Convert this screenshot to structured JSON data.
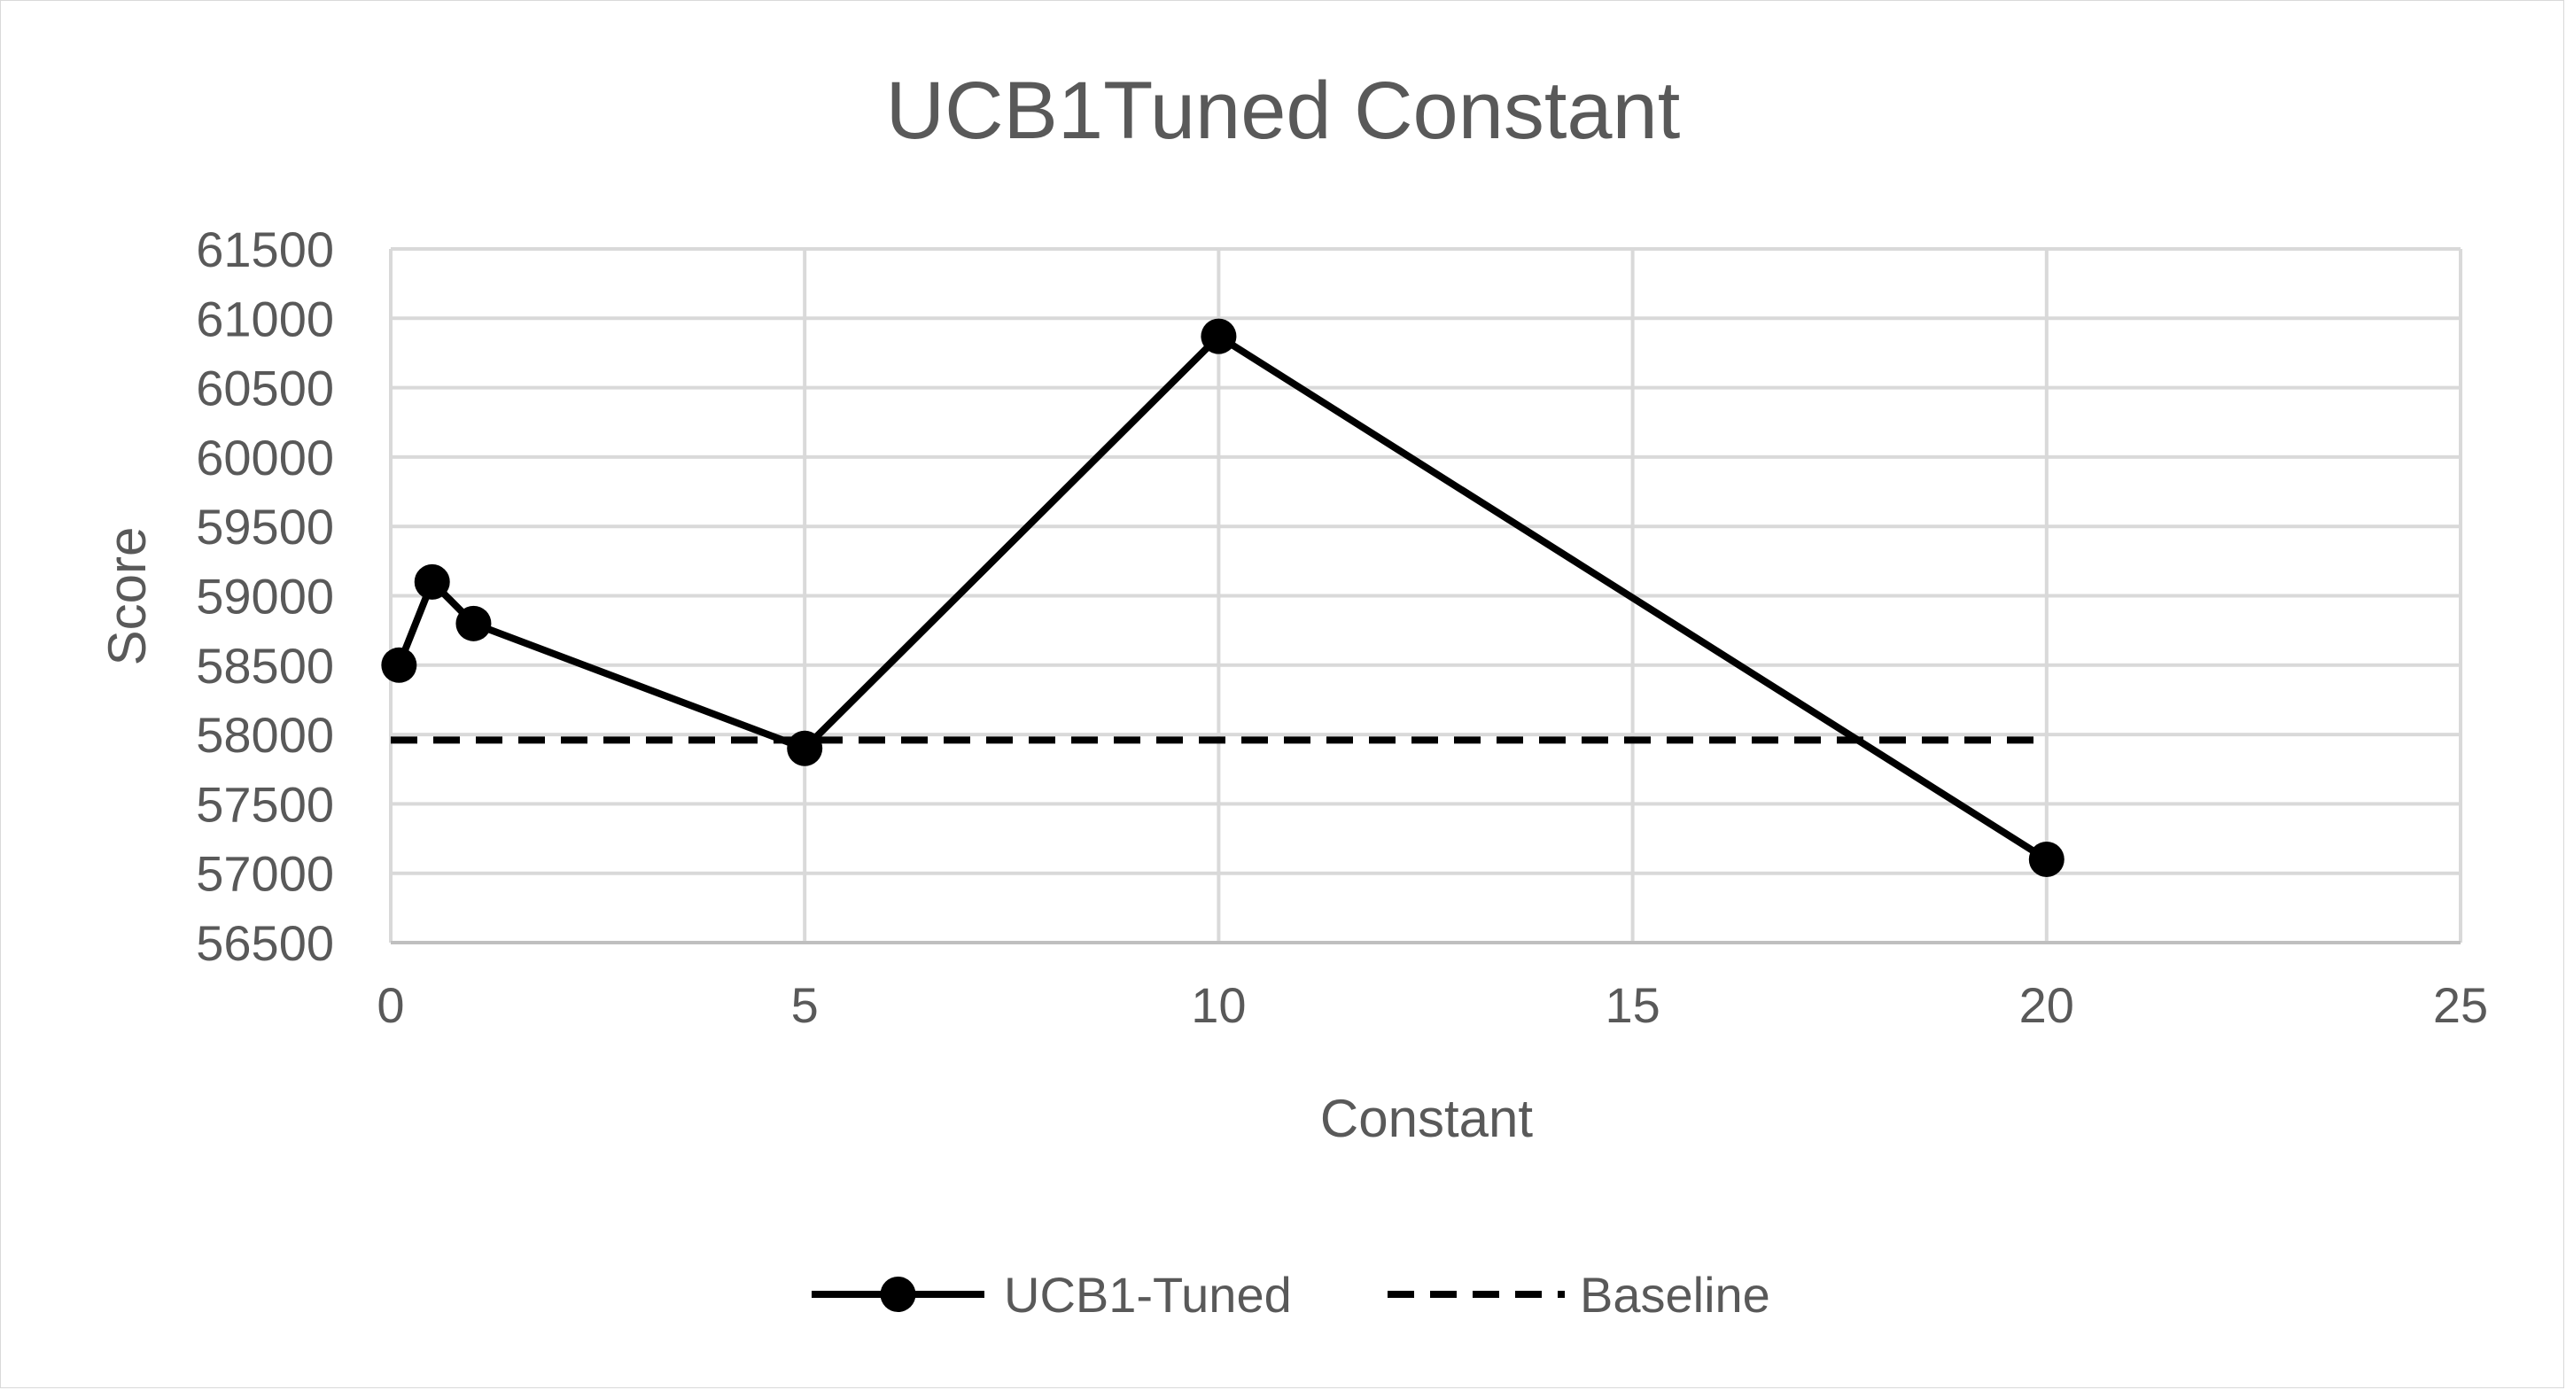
{
  "chart_data": {
    "type": "line",
    "title": "UCB1Tuned Constant",
    "xlabel": "Constant",
    "ylabel": "Score",
    "xlim": [
      0,
      25
    ],
    "ylim": [
      56500,
      61500
    ],
    "xticks": [
      "0",
      "5",
      "10",
      "15",
      "20",
      "25"
    ],
    "yticks": [
      "56500",
      "57000",
      "57500",
      "58000",
      "58500",
      "59000",
      "59500",
      "60000",
      "60500",
      "61000",
      "61500"
    ],
    "grid": true,
    "legend_position": "bottom",
    "series": [
      {
        "name": "UCB1-Tuned",
        "style": "solid-with-markers",
        "color": "#000000",
        "x": [
          0.1,
          0.5,
          1,
          5,
          10,
          20
        ],
        "y": [
          58500,
          59100,
          58800,
          57900,
          60870,
          57100
        ]
      },
      {
        "name": "Baseline",
        "style": "dashed",
        "color": "#000000",
        "x": [
          0,
          20
        ],
        "y": [
          57960,
          57960
        ]
      }
    ]
  }
}
